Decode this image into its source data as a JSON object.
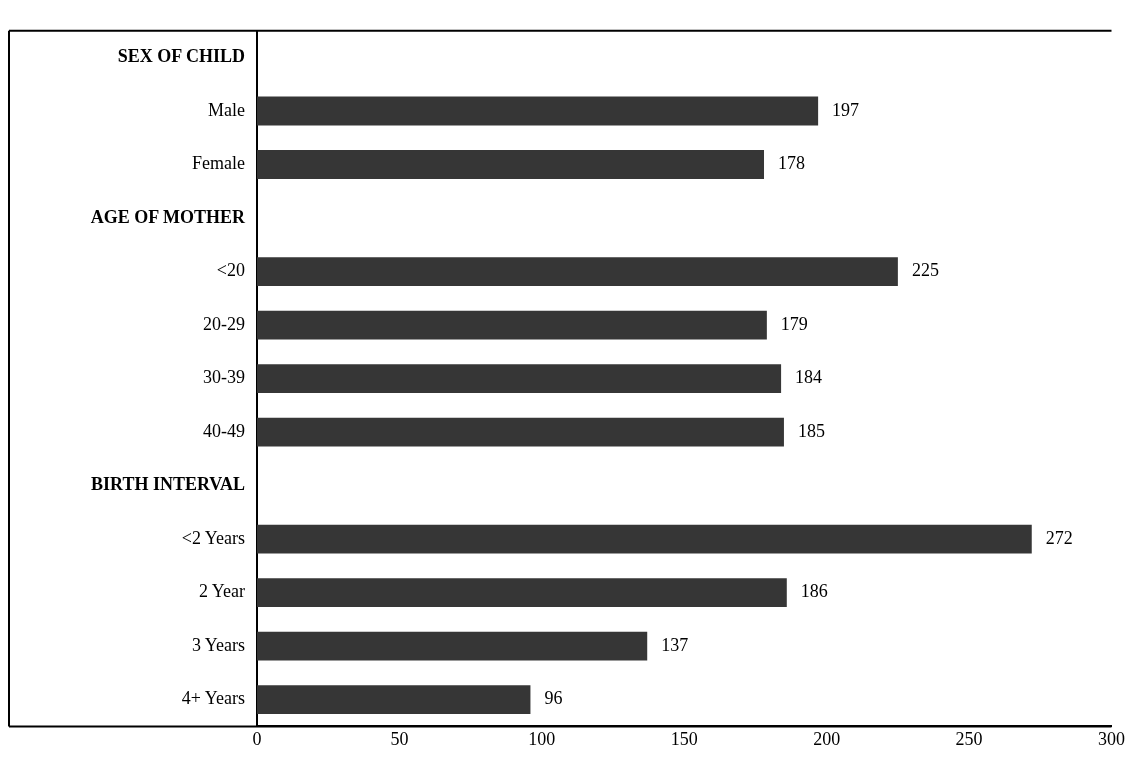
{
  "chart_data": {
    "type": "bar",
    "orientation": "horizontal",
    "categories": [
      "SEX OF CHILD",
      "Male",
      "Female",
      "AGE OF MOTHER",
      "<20",
      "20-29",
      "30-39",
      "40-49",
      "BIRTH INTERVAL",
      "<2 Years",
      "2 Year",
      "3 Years",
      "4+ Years"
    ],
    "values": [
      null,
      197,
      178,
      null,
      225,
      179,
      184,
      185,
      null,
      272,
      186,
      137,
      96
    ],
    "color": "#363636",
    "xlim": [
      0,
      300
    ],
    "xticks": [
      0,
      50,
      100,
      150,
      200,
      250,
      300
    ],
    "data_labels": true,
    "grid": false,
    "legend": false
  }
}
